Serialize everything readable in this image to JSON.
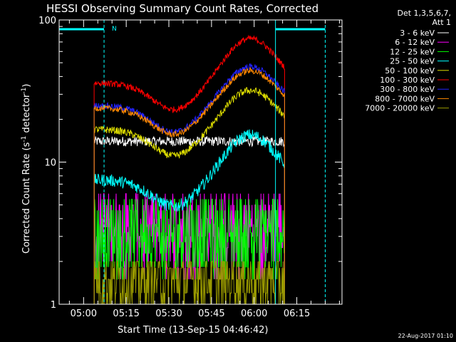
{
  "chart_data": {
    "type": "line",
    "title": "HESSI Observing Summary Count Rates, Corrected",
    "xlabel": "Start Time (13-Sep-15 04:46:42)",
    "ylabel": "Corrected Count Rate (s",
    "ylabel_sup1": "-1",
    "ylabel_mid": " detector",
    "ylabel_sup2": "-1",
    "ylabel_end": ")",
    "y_scale": "log",
    "ylim": [
      1,
      100
    ],
    "xlim_minutes": [
      4.7,
      104.2
    ],
    "xticks": [
      {
        "label": "05:00",
        "min": 13.3
      },
      {
        "label": "05:15",
        "min": 28.3
      },
      {
        "label": "05:30",
        "min": 43.3
      },
      {
        "label": "05:45",
        "min": 58.3
      },
      {
        "label": "06:00",
        "min": 73.3
      },
      {
        "label": "06:15",
        "min": 88.3
      }
    ],
    "yticks": [
      {
        "label": "1",
        "value": 1
      },
      {
        "label": "10",
        "value": 10
      },
      {
        "label": "100",
        "value": 100
      }
    ],
    "data_start_min": 17.0,
    "data_end_min": 84.0,
    "legend_header": [
      "Det 1,3,5,6,7,",
      "Att 1"
    ],
    "flag_marker": "N",
    "flag_bars_min": [
      [
        4.7,
        20.5
      ],
      [
        80.8,
        98.3
      ]
    ],
    "flag_vlines_min": [
      20.5,
      80.8,
      98.3
    ],
    "footer_stamp": "22-Aug-2017 01:10",
    "series": [
      {
        "name": "3 - 6 keV",
        "color": "#ffffff",
        "shape": "flat",
        "base": 14,
        "amp": 0,
        "noise": 0.08
      },
      {
        "name": "6 - 12 keV",
        "color": "#ff00ff",
        "shape": "steps",
        "base": 3.5,
        "amp": 0,
        "noise": 0.15
      },
      {
        "name": "12 - 25 keV",
        "color": "#00ff00",
        "shape": "steps",
        "base": 3.2,
        "amp": 0,
        "noise": 0.2
      },
      {
        "name": "25 - 50 keV",
        "color": "#00ffff",
        "shape": "flare",
        "base": 7.5,
        "amp": 8,
        "noise": 0.1
      },
      {
        "name": "50 - 100 keV",
        "color": "#dddd00",
        "shape": "flare",
        "base": 17,
        "amp": 15,
        "noise": 0.06
      },
      {
        "name": "100 - 300 keV",
        "color": "#ff0000",
        "shape": "flare",
        "base": 36,
        "amp": 38,
        "noise": 0.05
      },
      {
        "name": "300 - 800 keV",
        "color": "#2222ff",
        "shape": "flare",
        "base": 25,
        "amp": 22,
        "noise": 0.05
      },
      {
        "name": "800 - 7000 keV",
        "color": "#ff8800",
        "shape": "flare",
        "base": 24,
        "amp": 20,
        "noise": 0.05
      },
      {
        "name": "7000 - 20000 keV",
        "color": "#999900",
        "shape": "low",
        "base": 1.5,
        "amp": 0,
        "noise": 0.3
      }
    ],
    "grid": false,
    "legend_position": "top-right-outside",
    "colors": {
      "background": "#000000",
      "axes": "#ffffff",
      "flags": "#00ffff"
    }
  }
}
